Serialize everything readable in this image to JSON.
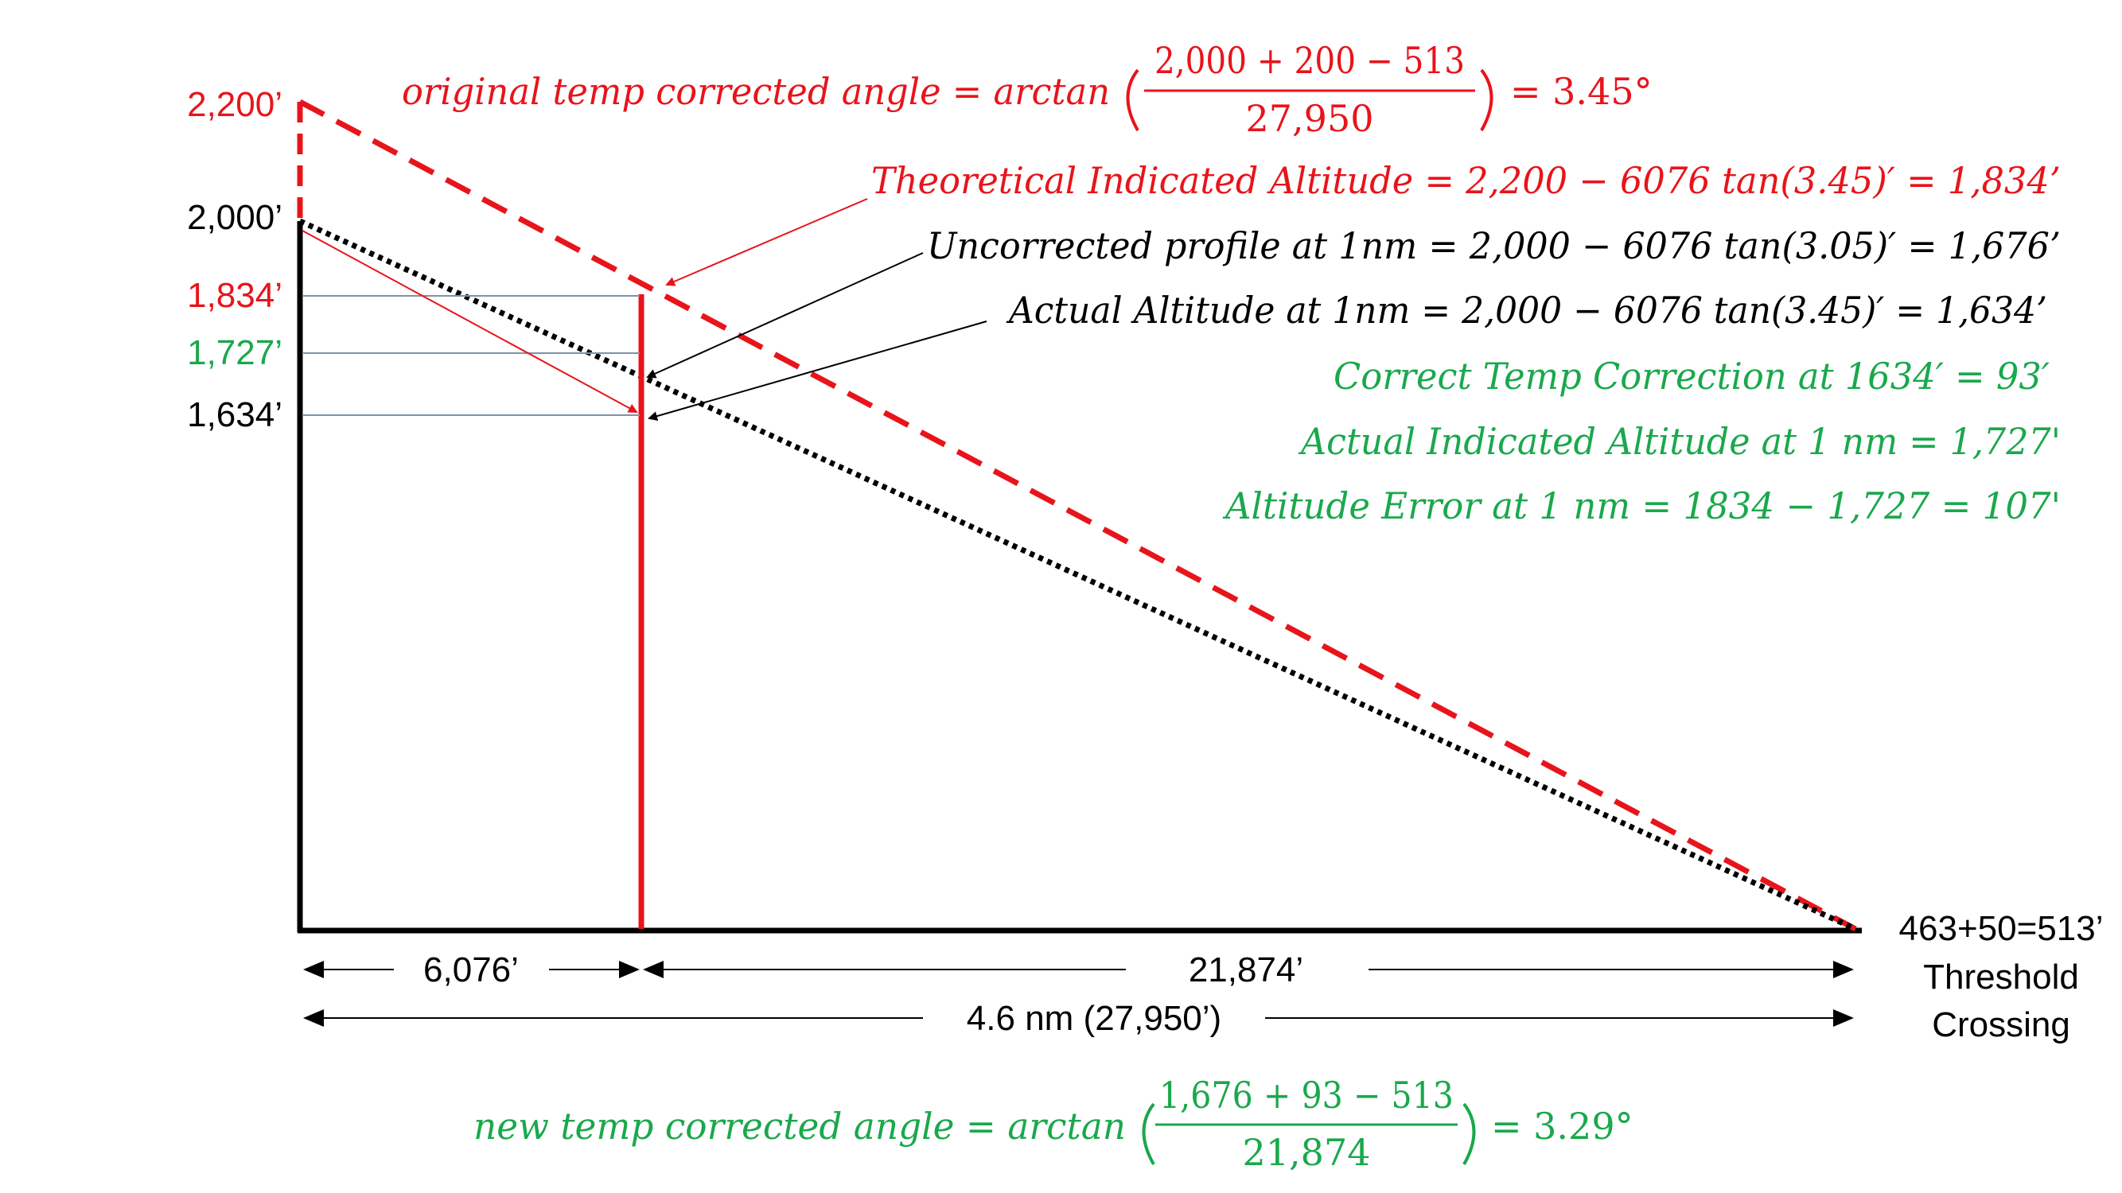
{
  "colors": {
    "red": "#e8141b",
    "green": "#1aa84c",
    "black": "#000000",
    "guide": "#7f93a6"
  },
  "y_axis_labels": {
    "alt_2200": "2,200’",
    "alt_2000": "2,000’",
    "alt_1834": "1,834’",
    "alt_1727": "1,727’",
    "alt_1634": "1,634’"
  },
  "equations": {
    "original_angle_lhs": "original temp corrected angle = arctan",
    "original_angle_numerator": "2,000 + 200 − 513",
    "original_angle_denominator": "27,950",
    "original_angle_result": "= 3.45°",
    "theoretical_indicated_altitude": "Theoretical  Indicated Altitude  = 2,200  − 6076 tan(3.45)′ = 1,834’",
    "uncorrected_profile": "Uncorrected profile at 1nm  = 2,000  − 6076 tan(3.05)′ = 1,676’",
    "actual_altitude": "Actual Altitude at 1nm  = 2,000  − 6076 tan(3.45)′ = 1,634’",
    "correct_temp_correction": "Correct  Temp Correction at 1634′ = 93′",
    "actual_indicated_altitude": "Actual Indicated Altitude at 1 nm = 1,727'",
    "altitude_error": "Altitude Error at 1 nm = 1834  −  1,727 = 107'",
    "new_angle_lhs": "new temp corrected angle  = arctan",
    "new_angle_numerator": "1,676 + 93 − 513",
    "new_angle_denominator": "21,874",
    "new_angle_result": "= 3.29°"
  },
  "dimensions": {
    "first_segment": "6,076’",
    "second_segment": "21,874’",
    "total": "4.6 nm (27,950’)"
  },
  "threshold": {
    "height_label": "463+50=513’",
    "line1": "Threshold",
    "line2": "Crossing"
  }
}
